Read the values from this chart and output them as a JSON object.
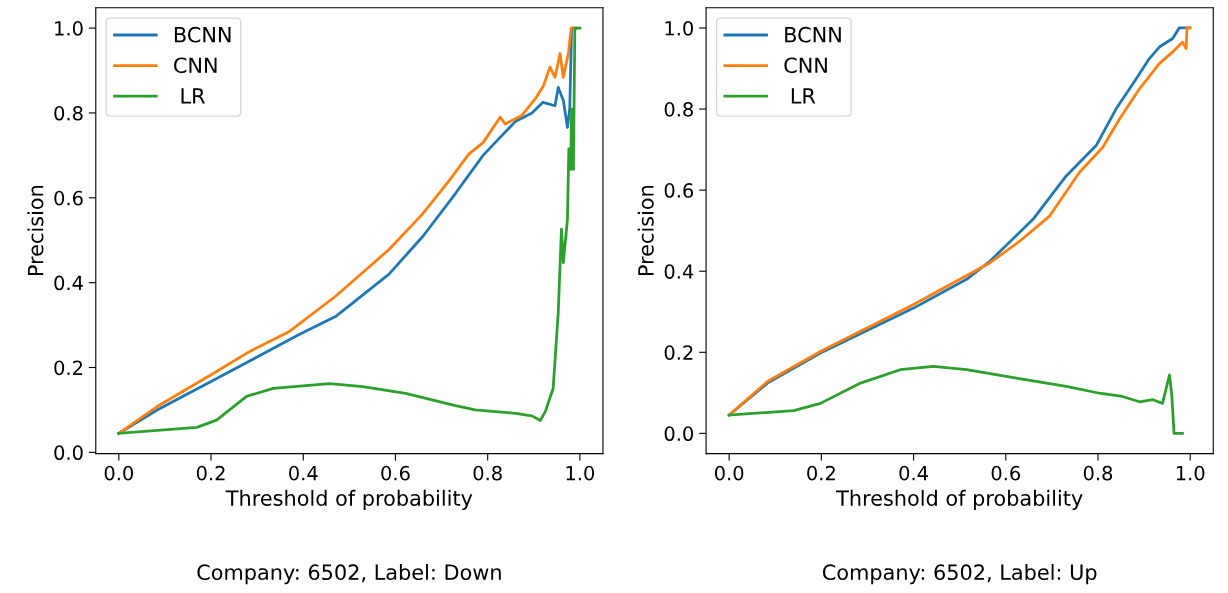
{
  "chart_data": [
    {
      "type": "line",
      "xlabel": "Threshold of probability",
      "ylabel": "Precision",
      "annotations": [
        "Company: 6502, Label: Down"
      ],
      "xlim": [
        -0.05,
        1.05
      ],
      "ylim": [
        -0.003,
        1.048
      ],
      "xticks": [
        {
          "value": 0,
          "label": "0.0"
        },
        {
          "value": 0.2,
          "label": "0.2"
        },
        {
          "value": 0.4,
          "label": "0.4"
        },
        {
          "value": 0.6,
          "label": "0.6"
        },
        {
          "value": 0.8,
          "label": "0.8"
        },
        {
          "value": 1,
          "label": "1.0"
        }
      ],
      "yticks": [
        {
          "value": 0,
          "label": "0.0"
        },
        {
          "value": 0.2,
          "label": "0.2"
        },
        {
          "value": 0.4,
          "label": "0.4"
        },
        {
          "value": 0.6,
          "label": "0.6"
        },
        {
          "value": 0.8,
          "label": "0.8"
        },
        {
          "value": 1,
          "label": "1.0"
        }
      ],
      "legend": "top left",
      "grid": false,
      "series": [
        {
          "name": "BCNN",
          "color": "#1f77b4",
          "x": [
            0,
            0.083,
            0.2,
            0.39,
            0.47,
            0.586,
            0.66,
            0.73,
            0.79,
            0.86,
            0.896,
            0.92,
            0.946,
            0.953,
            0.964,
            0.973,
            0.978,
            0.982,
            0.99
          ],
          "values": [
            0.045,
            0.1,
            0.167,
            0.277,
            0.32,
            0.42,
            0.51,
            0.61,
            0.7,
            0.78,
            0.8,
            0.825,
            0.817,
            0.86,
            0.83,
            0.766,
            0.81,
            1.0,
            1.0
          ]
        },
        {
          "name": "CNN",
          "color": "#ff7f0e",
          "x": [
            0,
            0.083,
            0.2,
            0.284,
            0.37,
            0.47,
            0.586,
            0.658,
            0.716,
            0.759,
            0.79,
            0.827,
            0.838,
            0.874,
            0.903,
            0.921,
            0.935,
            0.946,
            0.957,
            0.964,
            0.975,
            0.981,
            0.99
          ],
          "values": [
            0.045,
            0.108,
            0.183,
            0.238,
            0.285,
            0.368,
            0.478,
            0.561,
            0.64,
            0.703,
            0.73,
            0.79,
            0.774,
            0.794,
            0.833,
            0.864,
            0.908,
            0.884,
            0.94,
            0.884,
            0.94,
            1.0,
            1.0
          ]
        },
        {
          "name": " LR",
          "color": "#2ca02c",
          "x": [
            0,
            0.169,
            0.212,
            0.277,
            0.335,
            0.457,
            0.529,
            0.622,
            0.73,
            0.773,
            0.86,
            0.896,
            0.914,
            0.925,
            0.942,
            0.953,
            0.96,
            0.964,
            0.973,
            0.976,
            0.98,
            0.982,
            0.986,
            0.989,
            1.0
          ],
          "values": [
            0.045,
            0.059,
            0.076,
            0.132,
            0.151,
            0.162,
            0.155,
            0.139,
            0.11,
            0.1,
            0.092,
            0.086,
            0.075,
            0.096,
            0.151,
            0.329,
            0.526,
            0.447,
            0.549,
            0.715,
            0.667,
            0.809,
            0.667,
            1.0,
            1.0
          ]
        }
      ]
    },
    {
      "type": "line",
      "xlabel": "Threshold of probability",
      "ylabel": "Precision",
      "annotations": [
        "Company: 6502, Label: Up"
      ],
      "xlim": [
        -0.05,
        1.05
      ],
      "ylim": [
        -0.05,
        1.05
      ],
      "xticks": [
        {
          "value": 0,
          "label": "0.0"
        },
        {
          "value": 0.2,
          "label": "0.2"
        },
        {
          "value": 0.4,
          "label": "0.4"
        },
        {
          "value": 0.6,
          "label": "0.6"
        },
        {
          "value": 0.8,
          "label": "0.8"
        },
        {
          "value": 1,
          "label": "1.0"
        }
      ],
      "yticks": [
        {
          "value": 0,
          "label": "0.0"
        },
        {
          "value": 0.2,
          "label": "0.2"
        },
        {
          "value": 0.4,
          "label": "0.4"
        },
        {
          "value": 0.6,
          "label": "0.6"
        },
        {
          "value": 0.8,
          "label": "0.8"
        },
        {
          "value": 1,
          "label": "1.0"
        }
      ],
      "legend": "top left",
      "grid": false,
      "series": [
        {
          "name": "BCNN",
          "color": "#1f77b4",
          "x": [
            0,
            0.083,
            0.198,
            0.4,
            0.515,
            0.566,
            0.659,
            0.731,
            0.796,
            0.839,
            0.883,
            0.911,
            0.933,
            0.962,
            0.976,
            0.998
          ],
          "values": [
            0.045,
            0.124,
            0.198,
            0.309,
            0.38,
            0.425,
            0.528,
            0.635,
            0.71,
            0.8,
            0.875,
            0.924,
            0.953,
            0.974,
            1.0,
            1.0
          ]
        },
        {
          "name": "CNN",
          "color": "#ff7f0e",
          "x": [
            0,
            0.083,
            0.198,
            0.4,
            0.566,
            0.63,
            0.695,
            0.76,
            0.81,
            0.847,
            0.89,
            0.933,
            0.962,
            0.983,
            0.991,
            0.993,
            1.0
          ],
          "values": [
            0.045,
            0.128,
            0.202,
            0.318,
            0.421,
            0.474,
            0.536,
            0.644,
            0.705,
            0.776,
            0.85,
            0.912,
            0.941,
            0.965,
            0.949,
            1.0,
            1.0
          ]
        },
        {
          "name": " LR",
          "color": "#2ca02c",
          "x": [
            0,
            0.14,
            0.198,
            0.285,
            0.371,
            0.443,
            0.515,
            0.623,
            0.731,
            0.803,
            0.853,
            0.89,
            0.919,
            0.94,
            0.947,
            0.955,
            0.96,
            0.965,
            0.983
          ],
          "values": [
            0.045,
            0.056,
            0.074,
            0.124,
            0.157,
            0.165,
            0.157,
            0.136,
            0.116,
            0.099,
            0.091,
            0.078,
            0.083,
            0.074,
            0.107,
            0.144,
            0.095,
            0.0,
            0.0
          ]
        }
      ]
    }
  ]
}
